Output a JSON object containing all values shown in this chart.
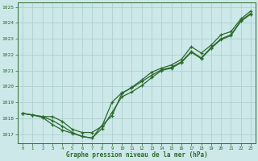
{
  "xlabel": "Graphe pression niveau de la mer (hPa)",
  "xlim": [
    -0.5,
    23.5
  ],
  "ylim": [
    1016.4,
    1025.3
  ],
  "yticks": [
    1017,
    1018,
    1019,
    1020,
    1021,
    1022,
    1023,
    1024,
    1025
  ],
  "xticks": [
    0,
    1,
    2,
    3,
    4,
    5,
    6,
    7,
    8,
    9,
    10,
    11,
    12,
    13,
    14,
    15,
    16,
    17,
    18,
    19,
    20,
    21,
    22,
    23
  ],
  "background_color": "#cce8e8",
  "grid_color": "#aacccc",
  "line_color": "#2d6a2d",
  "line1": [
    1018.3,
    1018.2,
    1018.1,
    1018.1,
    1017.8,
    1017.3,
    1017.1,
    1017.1,
    1017.5,
    1019.0,
    1019.6,
    1019.9,
    1020.3,
    1020.7,
    1021.05,
    1021.2,
    1021.55,
    1022.2,
    1021.8,
    1022.45,
    1023.0,
    1023.25,
    1024.15,
    1024.6
  ],
  "line2": [
    1018.3,
    1018.2,
    1018.1,
    1017.85,
    1017.5,
    1017.1,
    1016.85,
    1016.75,
    1017.35,
    1018.35,
    1019.35,
    1019.65,
    1020.05,
    1020.55,
    1021.0,
    1021.15,
    1021.5,
    1022.15,
    1021.75,
    1022.4,
    1022.95,
    1023.2,
    1024.1,
    1024.55
  ],
  "line3": [
    1018.3,
    1018.2,
    1018.05,
    1017.6,
    1017.25,
    1017.05,
    1016.85,
    1016.75,
    1017.55,
    1018.15,
    1019.55,
    1019.95,
    1020.4,
    1020.9,
    1021.15,
    1021.35,
    1021.7,
    1022.5,
    1022.1,
    1022.6,
    1023.25,
    1023.45,
    1024.25,
    1024.75
  ]
}
